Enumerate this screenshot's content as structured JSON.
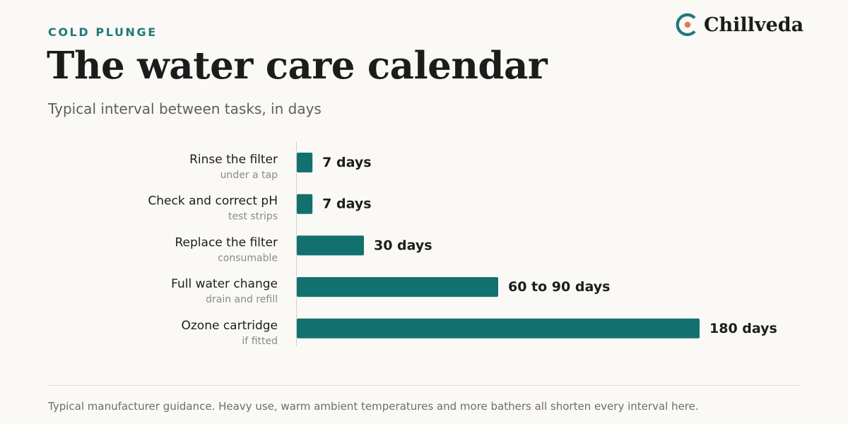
{
  "header": {
    "eyebrow": "COLD PLUNGE",
    "title": "The water care calendar",
    "subtitle": "Typical interval between tasks, in days"
  },
  "brand": {
    "name": "Chillveda",
    "accent_color": "#e07a56",
    "primary_color": "#1f7a78"
  },
  "footer": {
    "note": "Typical manufacturer guidance. Heavy use, warm ambient temperatures and more bathers all shorten every interval here."
  },
  "chart_data": {
    "type": "bar",
    "orientation": "horizontal",
    "title": "The water care calendar",
    "subtitle": "Typical interval between tasks, in days",
    "unit": "days",
    "bar_color": "#12716f",
    "xlim": [
      0,
      180
    ],
    "grid": false,
    "legend": "none",
    "categories": [
      "Rinse the filter",
      "Check and correct pH",
      "Replace the filter",
      "Full water change",
      "Ozone cartridge"
    ],
    "sublabels": [
      "under a tap",
      "test strips",
      "consumable",
      "drain and refill",
      "if fitted"
    ],
    "values": [
      7,
      7,
      30,
      90,
      180
    ],
    "data_labels": [
      "7 days",
      "7 days",
      "30 days",
      "60 to 90 days",
      "180 days"
    ]
  }
}
